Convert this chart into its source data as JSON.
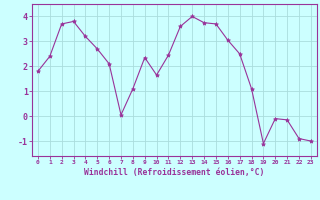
{
  "x": [
    0,
    1,
    2,
    3,
    4,
    5,
    6,
    7,
    8,
    9,
    10,
    11,
    12,
    13,
    14,
    15,
    16,
    17,
    18,
    19,
    20,
    21,
    22,
    23
  ],
  "y": [
    1.8,
    2.4,
    3.7,
    3.8,
    3.2,
    2.7,
    2.1,
    0.05,
    1.1,
    2.35,
    1.65,
    2.45,
    3.6,
    4.0,
    3.75,
    3.7,
    3.05,
    2.5,
    1.1,
    -1.1,
    -0.1,
    -0.15,
    -0.9,
    -1.0
  ],
  "line_color": "#993399",
  "marker": "*",
  "marker_size": 3,
  "bg_color": "#ccffff",
  "grid_color": "#aadddd",
  "xlabel": "Windchill (Refroidissement éolien,°C)",
  "xlabel_color": "#993399",
  "ylabel_ticks": [
    -1,
    0,
    1,
    2,
    3,
    4
  ],
  "ylim": [
    -1.6,
    4.5
  ],
  "xlim": [
    -0.5,
    23.5
  ],
  "tick_label_color": "#993399",
  "axis_color": "#993399",
  "x_tick_fontsize": 4.5,
  "y_tick_fontsize": 6.0,
  "xlabel_fontsize": 5.8
}
